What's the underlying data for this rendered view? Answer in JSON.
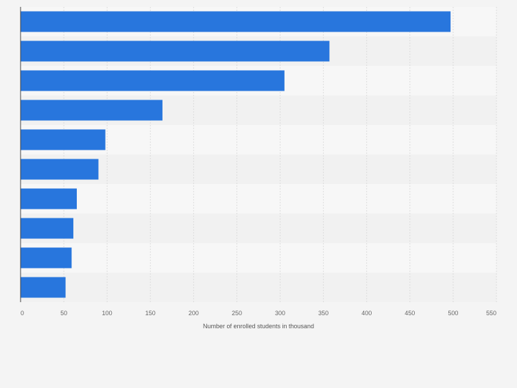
{
  "chart_data": {
    "type": "bar",
    "orientation": "horizontal",
    "categories": [
      "",
      "",
      "",
      "",
      "",
      "",
      "",
      "",
      "",
      ""
    ],
    "values": [
      497,
      357,
      305,
      164,
      98,
      90,
      65,
      61,
      59,
      52
    ],
    "title": "",
    "xlabel": "Number of enrolled students in thousand",
    "ylabel": "",
    "xlim": [
      0,
      550
    ],
    "xticks": [
      0,
      50,
      100,
      150,
      200,
      250,
      300,
      350,
      400,
      450,
      500,
      550
    ],
    "xtick_labels": [
      "0",
      "50",
      "100",
      "150",
      "200",
      "250",
      "300",
      "350",
      "400",
      "450",
      "500",
      "550"
    ],
    "grid": true,
    "legend": "none",
    "colors": {
      "bar": "#2876dd",
      "background": "#f4f4f4",
      "band_light": "#f7f7f7",
      "band_dark": "#f1f1f1",
      "grid": "#dcdcdc",
      "axis": "#444444",
      "tick_text": "#666666"
    }
  }
}
